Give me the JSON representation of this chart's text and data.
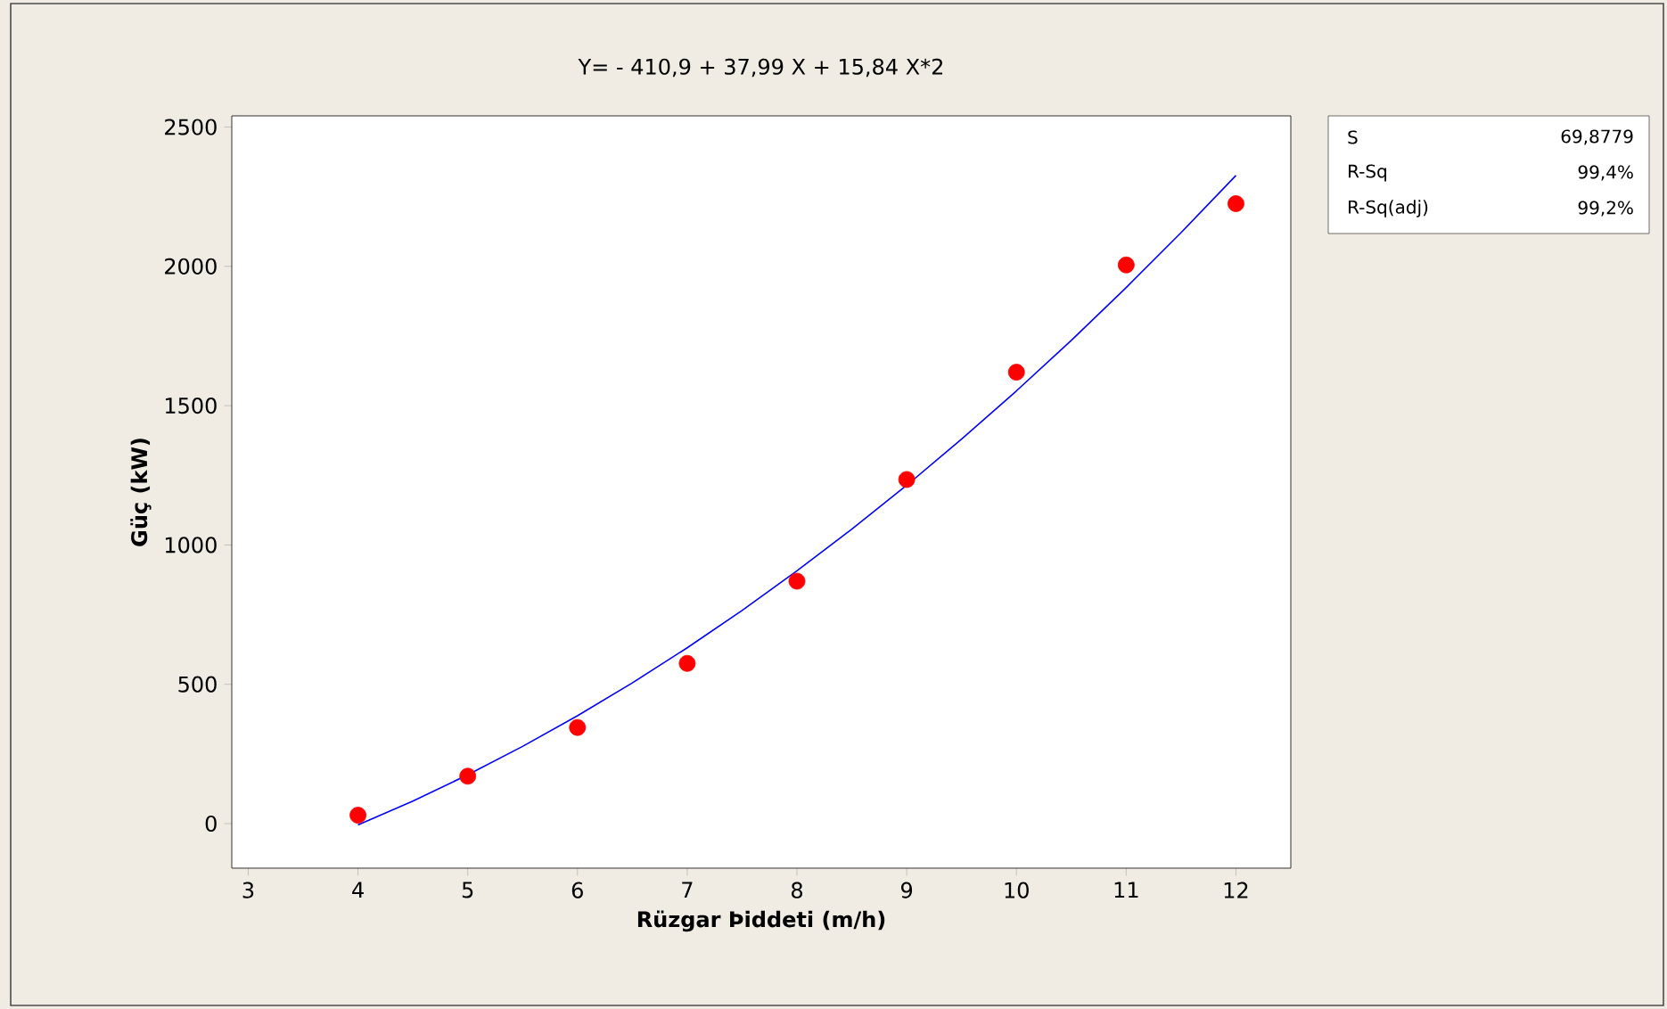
{
  "chart_data": {
    "type": "scatter",
    "title": "Y=  - 410,9 + 37,99 X + 15,84 X*2",
    "xlabel": "Rüzgar Þiddeti (m/h)",
    "ylabel": "Güç (kW)",
    "x": [
      4,
      5,
      6,
      7,
      8,
      9,
      10,
      11,
      12
    ],
    "series": [
      {
        "color": "#ff0000",
        "marker": "circle",
        "values": [
          30,
          170,
          345,
          575,
          870,
          1235,
          1620,
          2005,
          2225
        ]
      },
      {
        "type": "line",
        "color": "#0000ff",
        "marker": "none",
        "x": [
          4,
          4.5,
          5,
          5.5,
          6,
          6.5,
          7,
          7.5,
          8,
          8.5,
          9,
          9.5,
          10,
          10.5,
          11,
          11.5,
          12
        ],
        "values": [
          -5,
          81,
          175,
          277,
          387,
          505,
          631,
          765,
          907,
          1057,
          1214,
          1380,
          1553,
          1734,
          1924,
          2121,
          2326
        ]
      }
    ],
    "xlim": [
      2.85,
      12.5
    ],
    "ylim": [
      -160,
      2540
    ],
    "xticks": [
      3,
      4,
      5,
      6,
      7,
      8,
      9,
      10,
      11,
      12
    ],
    "yticks": [
      0,
      500,
      1000,
      1500,
      2000,
      2500
    ],
    "grid": false,
    "annotations": [
      "S",
      "69,8779",
      "R-Sq",
      "99,4%",
      "R-Sq(adj)",
      "99,2%"
    ]
  }
}
